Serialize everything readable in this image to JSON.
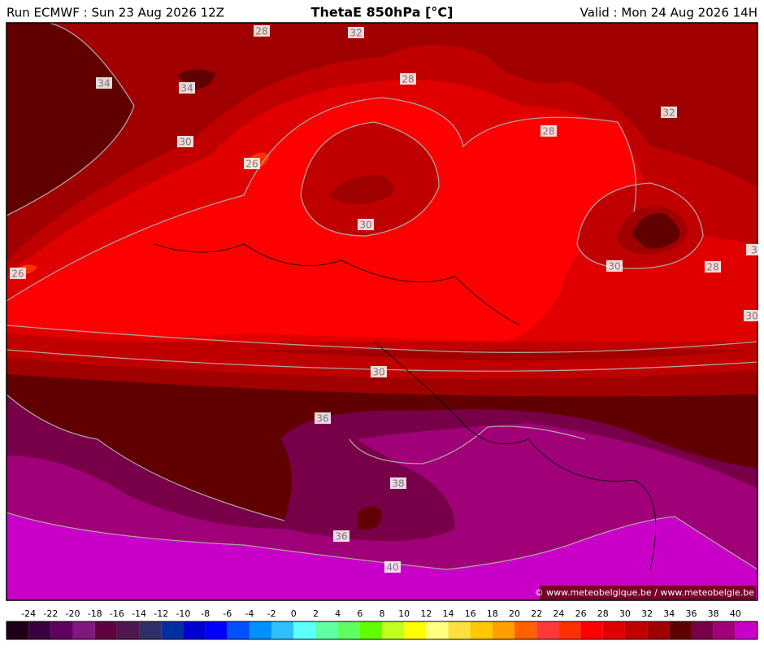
{
  "header": {
    "left": "Run ECMWF : Sun 23 Aug 2026 12Z",
    "title": "ThetaE 850hPa [°C]",
    "right": "Valid : Mon 24 Aug 2026 14H"
  },
  "contour_labels": [
    "28",
    "32",
    "34",
    "34",
    "28",
    "30",
    "26",
    "28",
    "32",
    "30",
    "26",
    "30",
    "28",
    "30",
    "30",
    "36",
    "38",
    "36",
    "40",
    "3"
  ],
  "copyright": "© www.meteobelgique.be / www.meteobelgie.be",
  "colorbar": {
    "labels": [
      -24,
      -22,
      -20,
      -18,
      -16,
      -14,
      -12,
      -10,
      -8,
      -6,
      -4,
      -2,
      0,
      2,
      4,
      6,
      8,
      10,
      12,
      14,
      16,
      18,
      20,
      22,
      24,
      26,
      28,
      30,
      32,
      34,
      36,
      38,
      40
    ],
    "colors": [
      "#200018",
      "#3c0040",
      "#600060",
      "#801880",
      "#600040",
      "#501850",
      "#303068",
      "#0030a0",
      "#0000d0",
      "#0000ff",
      "#0050ff",
      "#0090ff",
      "#30c0ff",
      "#60ffff",
      "#60ffa0",
      "#60ff60",
      "#60ff00",
      "#c0ff20",
      "#ffff00",
      "#ffff80",
      "#ffe040",
      "#ffc800",
      "#ffa000",
      "#ff6000",
      "#ff3838",
      "#ff3000",
      "#ff0000",
      "#e00000",
      "#c00000",
      "#a00000",
      "#600000",
      "#780048",
      "#a00078",
      "#c800c8"
    ]
  }
}
